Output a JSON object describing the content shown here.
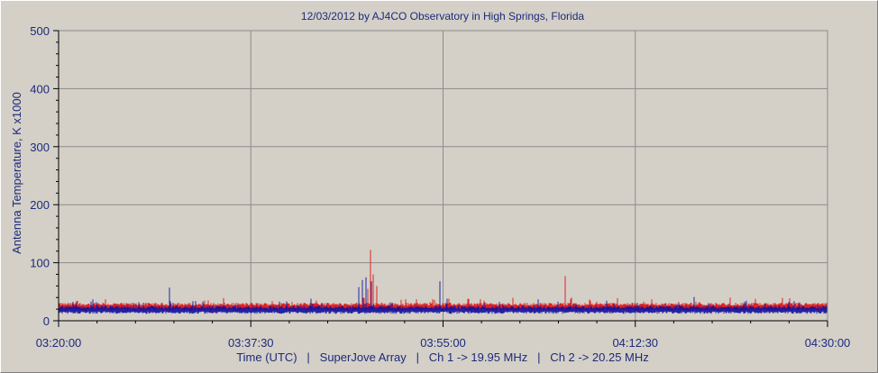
{
  "chart_data": {
    "type": "line",
    "title": "12/03/2012  by  AJ4CO Observatory  in  High Springs, Florida",
    "xlabel": "Time (UTC)   |   SuperJove Array   |   Ch 1 -> 19.95 MHz   |   Ch 2 -> 20.25 MHz",
    "ylabel": "Antenna Temperature, K  x1000",
    "xlim": [
      "03:20:00",
      "04:30:00"
    ],
    "ylim": [
      0,
      500
    ],
    "x_ticks": [
      "03:20:00",
      "03:37:30",
      "03:55:00",
      "04:12:30",
      "04:30:00"
    ],
    "y_ticks": [
      "0",
      "100",
      "200",
      "300",
      "400",
      "500"
    ],
    "grid": true,
    "legend": "none",
    "colors": {
      "plot_bg": "#d4d0c8",
      "grid": "#8c8c8c",
      "text": "#1c2a7a",
      "ch1": "#e01818",
      "ch2": "#1010a0"
    },
    "series": [
      {
        "channel": "Ch 1",
        "color": "#e01818",
        "baseline": 24,
        "spikes": [
          {
            "t": "03:47:45",
            "v": 40
          },
          {
            "t": "03:48:10",
            "v": 55
          },
          {
            "t": "03:48:25",
            "v": 122
          },
          {
            "t": "03:48:40",
            "v": 80
          },
          {
            "t": "03:49:00",
            "v": 60
          },
          {
            "t": "04:06:05",
            "v": 77
          },
          {
            "t": "04:06:40",
            "v": 40
          },
          {
            "t": "03:43:30",
            "v": 35
          },
          {
            "t": "03:55:30",
            "v": 38
          }
        ]
      },
      {
        "channel": "Ch 2",
        "color": "#1010a0",
        "baseline": 19,
        "spikes": [
          {
            "t": "03:23:05",
            "v": 37
          },
          {
            "t": "03:30:05",
            "v": 57
          },
          {
            "t": "03:40:05",
            "v": 33
          },
          {
            "t": "03:43:00",
            "v": 38
          },
          {
            "t": "03:47:20",
            "v": 58
          },
          {
            "t": "03:47:40",
            "v": 70
          },
          {
            "t": "03:48:00",
            "v": 75
          },
          {
            "t": "03:48:30",
            "v": 68
          },
          {
            "t": "03:54:45",
            "v": 68
          },
          {
            "t": "03:55:20",
            "v": 38
          },
          {
            "t": "04:03:40",
            "v": 37
          },
          {
            "t": "04:05:30",
            "v": 33
          },
          {
            "t": "04:17:50",
            "v": 41
          }
        ]
      }
    ]
  }
}
